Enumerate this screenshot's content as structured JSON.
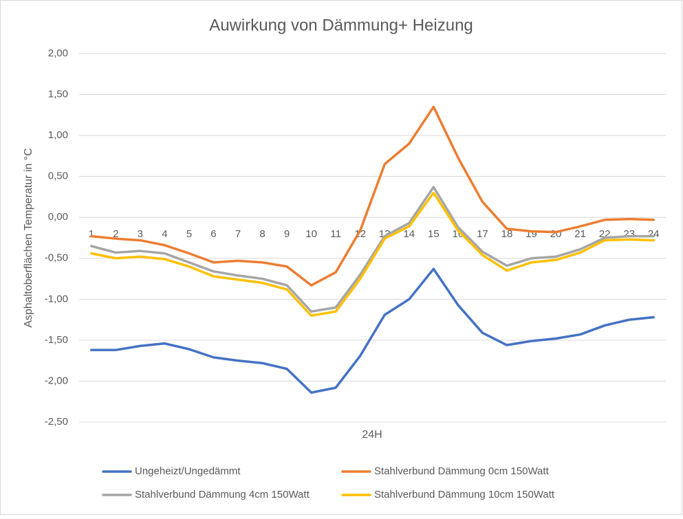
{
  "chart_data": {
    "type": "line",
    "title": "Auwirkung von Dämmung+ Heizung",
    "x_label": "24H",
    "y_label": "Asphaltoberflächen Temperatur in °C",
    "categories": [
      "1",
      "2",
      "3",
      "4",
      "5",
      "6",
      "7",
      "8",
      "9",
      "10",
      "11",
      "12",
      "13",
      "14",
      "15",
      "16",
      "17",
      "18",
      "19",
      "20",
      "21",
      "22",
      "23",
      "24"
    ],
    "series": [
      {
        "name": "Ungeheizt/Ungedämmt",
        "color": "#4472c4",
        "values": [
          -1.62,
          -1.62,
          -1.57,
          -1.54,
          -1.61,
          -1.71,
          -1.75,
          -1.78,
          -1.85,
          -2.14,
          -2.08,
          -1.69,
          -1.19,
          -1.0,
          -0.63,
          -1.07,
          -1.41,
          -1.56,
          -1.51,
          -1.48,
          -1.43,
          -1.32,
          -1.25,
          -1.22
        ]
      },
      {
        "name": "Stahlverbund Dämmung 0cm 150Watt",
        "color": "#ed7d31",
        "values": [
          -0.23,
          -0.26,
          -0.28,
          -0.34,
          -0.44,
          -0.55,
          -0.53,
          -0.55,
          -0.6,
          -0.83,
          -0.67,
          -0.16,
          0.65,
          0.9,
          1.35,
          0.73,
          0.19,
          -0.14,
          -0.17,
          -0.18,
          -0.11,
          -0.03,
          -0.02,
          -0.03
        ]
      },
      {
        "name": "Stahlverbund Dämmung 4cm 150Watt",
        "color": "#a5a5a5",
        "values": [
          -0.35,
          -0.43,
          -0.41,
          -0.44,
          -0.55,
          -0.66,
          -0.71,
          -0.75,
          -0.83,
          -1.15,
          -1.1,
          -0.7,
          -0.23,
          -0.07,
          0.37,
          -0.12,
          -0.42,
          -0.59,
          -0.5,
          -0.48,
          -0.39,
          -0.25,
          -0.23,
          -0.23
        ]
      },
      {
        "name": "Stahlverbund Dämmung 10cm 150Watt",
        "color": "#ffc000",
        "values": [
          -0.44,
          -0.5,
          -0.48,
          -0.51,
          -0.6,
          -0.72,
          -0.76,
          -0.8,
          -0.88,
          -1.2,
          -1.15,
          -0.75,
          -0.26,
          -0.11,
          0.3,
          -0.16,
          -0.46,
          -0.65,
          -0.55,
          -0.52,
          -0.43,
          -0.28,
          -0.27,
          -0.28
        ]
      }
    ],
    "ylim": [
      -2.5,
      2
    ],
    "yticks": [
      {
        "value": -2.5,
        "label": "-2,50"
      },
      {
        "value": -2,
        "label": "-2,00"
      },
      {
        "value": -1.5,
        "label": "-1,50"
      },
      {
        "value": -1,
        "label": "-1,00"
      },
      {
        "value": -0.5,
        "label": "-0,50"
      },
      {
        "value": 0,
        "label": "0,00"
      },
      {
        "value": 0.5,
        "label": "0,50"
      },
      {
        "value": 1,
        "label": "1,00"
      },
      {
        "value": 1.5,
        "label": "1,50"
      },
      {
        "value": 2,
        "label": "2,00"
      }
    ],
    "grid": true,
    "legend": "bottom"
  }
}
